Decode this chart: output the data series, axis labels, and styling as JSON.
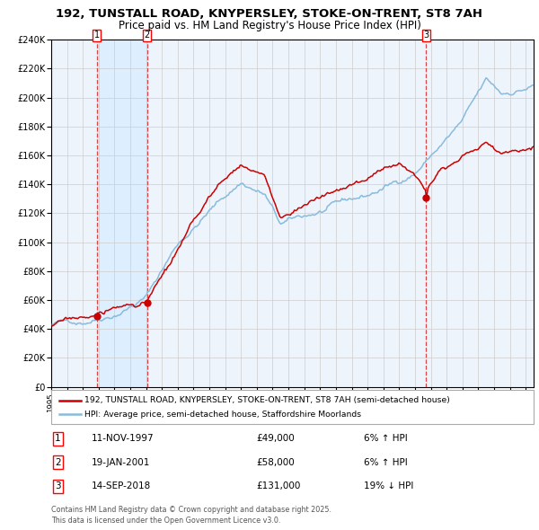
{
  "title": "192, TUNSTALL ROAD, KNYPERSLEY, STOKE-ON-TRENT, ST8 7AH",
  "subtitle": "Price paid vs. HM Land Registry's House Price Index (HPI)",
  "ylim": [
    0,
    240000
  ],
  "yticks": [
    0,
    20000,
    40000,
    60000,
    80000,
    100000,
    120000,
    140000,
    160000,
    180000,
    200000,
    220000,
    240000
  ],
  "xmin": 1995.0,
  "xmax": 2025.5,
  "xticks": [
    1995,
    1996,
    1997,
    1998,
    1999,
    2000,
    2001,
    2002,
    2003,
    2004,
    2005,
    2006,
    2007,
    2008,
    2009,
    2010,
    2011,
    2012,
    2013,
    2014,
    2015,
    2016,
    2017,
    2018,
    2019,
    2020,
    2021,
    2022,
    2023,
    2024,
    2025
  ],
  "sale_dates": [
    1997.87,
    2001.05,
    2018.71
  ],
  "sale_prices": [
    49000,
    58000,
    131000
  ],
  "sale_labels": [
    "1",
    "2",
    "3"
  ],
  "line_color_red": "#cc0000",
  "line_color_blue": "#88bbdd",
  "shade_color": "#ddeeff",
  "vline_color": "#dd4444",
  "grid_color": "#cccccc",
  "background_color": "#eef4fb",
  "legend_line1": "192, TUNSTALL ROAD, KNYPERSLEY, STOKE-ON-TRENT, ST8 7AH (semi-detached house)",
  "legend_line2": "HPI: Average price, semi-detached house, Staffordshire Moorlands",
  "table_rows": [
    [
      "1",
      "11-NOV-1997",
      "£49,000",
      "6% ↑ HPI"
    ],
    [
      "2",
      "19-JAN-2001",
      "£58,000",
      "6% ↑ HPI"
    ],
    [
      "3",
      "14-SEP-2018",
      "£131,000",
      "19% ↓ HPI"
    ]
  ],
  "footer": "Contains HM Land Registry data © Crown copyright and database right 2025.\nThis data is licensed under the Open Government Licence v3.0."
}
